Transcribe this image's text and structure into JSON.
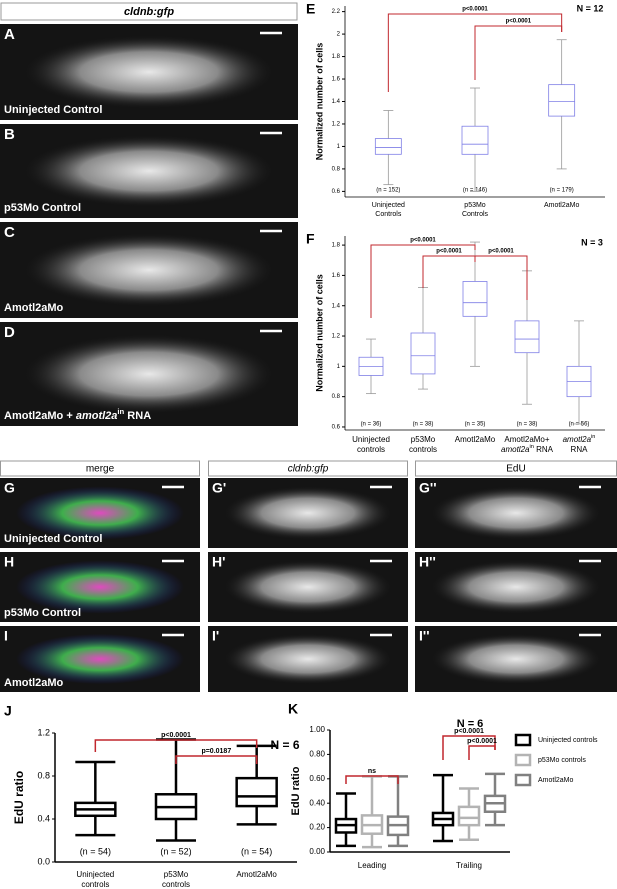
{
  "images": {
    "top": {
      "header": "cldnb:gfp",
      "panels": [
        {
          "letter": "A",
          "label": [
            "Uninjected Control"
          ]
        },
        {
          "letter": "B",
          "label": [
            "p53Mo Control"
          ]
        },
        {
          "letter": "C",
          "label": [
            "Amotl2aMo"
          ]
        },
        {
          "letter": "D",
          "label": [
            {
              "text": "Amotl2aMo + "
            },
            {
              "text": "amotl2a",
              "style": "italic"
            },
            {
              "text": "in",
              "style": "sup"
            },
            {
              "text": " RNA"
            }
          ]
        }
      ]
    },
    "grid": {
      "columns": [
        "merge",
        "cldnb:gfp",
        "EdU"
      ],
      "rows": [
        {
          "letters": [
            "G",
            "G'",
            "G''"
          ],
          "label": "Uninjected Control"
        },
        {
          "letters": [
            "H",
            "H'",
            "H''"
          ],
          "label": "p53Mo Control"
        },
        {
          "letters": [
            "I",
            "I'",
            "I''"
          ],
          "label": "Amotl2aMo"
        }
      ]
    }
  },
  "chart_data": [
    {
      "type": "box",
      "panel": "E",
      "ylabel": "Normalized number of cells",
      "categories": [
        [
          "Uninjected",
          "Controls"
        ],
        [
          "p53Mo",
          "Controls"
        ],
        [
          "Amotl2aMo"
        ]
      ],
      "n_labels": [
        "(n = 152)",
        "(n = 146)",
        "(n = 179)"
      ],
      "series": [
        {
          "color": "#7f7fe6",
          "values": [
            {
              "min": 0.66,
              "q1": 0.93,
              "median": 0.99,
              "q3": 1.07,
              "max": 1.32
            },
            {
              "min": 0.6,
              "q1": 0.93,
              "median": 1.02,
              "q3": 1.18,
              "max": 1.52
            },
            {
              "min": 0.8,
              "q1": 1.27,
              "median": 1.4,
              "q3": 1.55,
              "max": 1.95
            }
          ]
        }
      ],
      "annotations": [
        "p<0.0001",
        "p<0.0001",
        "N = 12"
      ],
      "ylim": [
        0.55,
        2.25
      ],
      "yticks": [
        0.6,
        0.8,
        1,
        1.2,
        1.4,
        1.6,
        1.8,
        2,
        2.2
      ]
    },
    {
      "type": "box",
      "panel": "F",
      "ylabel": "Normalized number of cells",
      "categories": [
        [
          "Uninjected",
          "controls"
        ],
        [
          "p53Mo",
          "controls"
        ],
        [
          "Amotl2aMo"
        ],
        [
          "Amotl2aMo+",
          [
            {
              "text": "amotl2a",
              "style": "italic"
            },
            {
              "text": "in",
              "style": "sup"
            },
            {
              "text": " RNA"
            }
          ]
        ],
        [
          [
            {
              "text": "amotl2a",
              "style": "italic"
            },
            {
              "text": "in",
              "style": "sup"
            }
          ],
          "RNA"
        ]
      ],
      "n_labels": [
        "(n = 36)",
        "(n = 38)",
        "(n = 35)",
        "(n = 38)",
        "(n = 56)"
      ],
      "series": [
        {
          "color": "#7f7fe6",
          "values": [
            {
              "min": 0.82,
              "q1": 0.94,
              "median": 1.0,
              "q3": 1.06,
              "max": 1.18
            },
            {
              "min": 0.85,
              "q1": 0.95,
              "median": 1.07,
              "q3": 1.22,
              "max": 1.52
            },
            {
              "min": 1.0,
              "q1": 1.33,
              "median": 1.42,
              "q3": 1.56,
              "max": 1.82
            },
            {
              "min": 0.75,
              "q1": 1.09,
              "median": 1.18,
              "q3": 1.3,
              "max": 1.63
            },
            {
              "min": 0.62,
              "q1": 0.8,
              "median": 0.9,
              "q3": 1.0,
              "max": 1.3
            }
          ]
        }
      ],
      "annotations": [
        "p<0.0001",
        "p<0.0001",
        "p<0.0001",
        "N = 3"
      ],
      "ylim": [
        0.58,
        1.86
      ],
      "yticks": [
        0.6,
        0.8,
        1,
        1.2,
        1.4,
        1.6,
        1.8
      ]
    },
    {
      "type": "box",
      "panel": "J",
      "ylabel": "EdU ratio",
      "categories": [
        [
          "Uninjected",
          "controls"
        ],
        [
          "p53Mo",
          "controls"
        ],
        [
          "Amotl2aMo"
        ]
      ],
      "n_labels": [
        "(n = 54)",
        "(n = 52)",
        "(n = 54)"
      ],
      "series": [
        {
          "color": "#000000",
          "values": [
            {
              "min": 0.25,
              "q1": 0.43,
              "median": 0.49,
              "q3": 0.55,
              "max": 0.93
            },
            {
              "min": 0.2,
              "q1": 0.4,
              "median": 0.51,
              "q3": 0.63,
              "max": 1.14
            },
            {
              "min": 0.35,
              "q1": 0.52,
              "median": 0.61,
              "q3": 0.78,
              "max": 1.08
            }
          ]
        }
      ],
      "annotations": [
        "p<0.0001",
        "p=0.0187",
        "N = 6"
      ],
      "ylim": [
        0,
        1.2
      ],
      "yticks": [
        {
          "value": 0,
          "label": "0.0"
        },
        0.4,
        0.8,
        1.2
      ]
    },
    {
      "type": "box",
      "panel": "K",
      "ylabel": "EdU ratio",
      "categories": [
        [
          "Leading"
        ],
        [
          "Trailing"
        ]
      ],
      "series": [
        {
          "name": "Uninjected controls",
          "color": "#000000",
          "values": [
            {
              "min": 0.05,
              "q1": 0.16,
              "median": 0.22,
              "q3": 0.27,
              "max": 0.48
            },
            {
              "min": 0.09,
              "q1": 0.22,
              "median": 0.27,
              "q3": 0.32,
              "max": 0.63
            }
          ]
        },
        {
          "name": "p53Mo controls",
          "color": "#b3b3b3",
          "values": [
            {
              "min": 0.04,
              "q1": 0.15,
              "median": 0.22,
              "q3": 0.3,
              "max": 0.62
            },
            {
              "min": 0.1,
              "q1": 0.22,
              "median": 0.28,
              "q3": 0.37,
              "max": 0.52
            }
          ]
        },
        {
          "name": "Amotl2aMo",
          "color": "#808080",
          "values": [
            {
              "min": 0.05,
              "q1": 0.14,
              "median": 0.22,
              "q3": 0.29,
              "max": 0.62
            },
            {
              "min": 0.22,
              "q1": 0.33,
              "median": 0.4,
              "q3": 0.46,
              "max": 0.64
            }
          ]
        }
      ],
      "annotations": [
        "ns",
        "p<0.0001",
        "p<0.0001",
        "N = 6"
      ],
      "ylim": [
        0,
        1
      ],
      "yticks": [
        {
          "value": 0,
          "label": "0.00"
        },
        {
          "value": 0.2,
          "label": "0.20"
        },
        {
          "value": 0.4,
          "label": "0.40"
        },
        {
          "value": 0.6,
          "label": "0.60"
        },
        {
          "value": 0.8,
          "label": "0.80"
        },
        {
          "value": 1,
          "label": "1.00"
        }
      ]
    }
  ]
}
